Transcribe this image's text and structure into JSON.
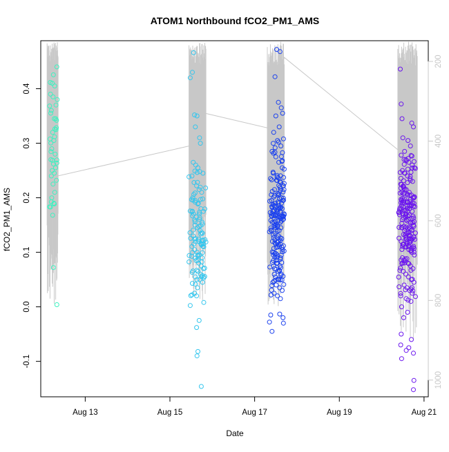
{
  "chart_data": {
    "type": "scatter",
    "title": "ATOM1 Northbound fCO2_PM1_AMS",
    "xlabel": "Date",
    "ylabel": "fCO2_PM1_AMS",
    "x_axis": {
      "range_days": [
        11.95,
        21.1
      ],
      "ticks": [
        {
          "value": 13,
          "label": "Aug 13"
        },
        {
          "value": 15,
          "label": "Aug 15"
        },
        {
          "value": 17,
          "label": "Aug 17"
        },
        {
          "value": 19,
          "label": "Aug 19"
        },
        {
          "value": 21,
          "label": "Aug 21"
        }
      ]
    },
    "y_axis": {
      "range": [
        -0.165,
        0.488
      ],
      "ticks": [
        -0.1,
        0.0,
        0.1,
        0.2,
        0.3,
        0.4
      ],
      "tick_labels": [
        "-0.1",
        "0.0",
        "0.1",
        "0.2",
        "0.3",
        "0.4"
      ]
    },
    "y2_axis": {
      "label": "",
      "reversed": true,
      "range": [
        1042,
        148
      ],
      "ticks": [
        200,
        400,
        600,
        800,
        1000
      ],
      "tick_labels": [
        "200",
        "400",
        "600",
        "800",
        "1000"
      ],
      "color": "#c8c8c8"
    },
    "colors": {
      "series": [
        "#3cf2c0",
        "#33c6ee",
        "#1a40ee",
        "#6a14ee"
      ],
      "altitude_line": "#c8c8c8",
      "axis": "#000000"
    },
    "grid": false,
    "legend": "none",
    "series": [
      {
        "day_range": [
          12.15,
          12.35
        ],
        "y_min": 0.004,
        "y_max": 0.44,
        "points": [
          [
            12.33,
            0.44
          ],
          [
            12.22,
            0.41
          ],
          [
            12.28,
            0.405
          ],
          [
            12.18,
            0.39
          ],
          [
            12.24,
            0.385
          ],
          [
            12.31,
            0.37
          ],
          [
            12.2,
            0.36
          ],
          [
            12.27,
            0.345
          ],
          [
            12.23,
            0.32
          ],
          [
            12.26,
            0.305
          ],
          [
            12.21,
            0.29
          ],
          [
            12.29,
            0.28
          ],
          [
            12.19,
            0.27
          ],
          [
            12.25,
            0.262
          ],
          [
            12.3,
            0.255
          ],
          [
            12.22,
            0.25
          ],
          [
            12.27,
            0.245
          ],
          [
            12.2,
            0.24
          ],
          [
            12.32,
            0.232
          ],
          [
            12.24,
            0.225
          ],
          [
            12.28,
            0.21
          ],
          [
            12.21,
            0.2
          ],
          [
            12.26,
            0.19
          ],
          [
            12.18,
            0.183
          ],
          [
            12.23,
            0.168
          ],
          [
            12.25,
            0.072
          ],
          [
            12.33,
            0.004
          ]
        ]
      },
      {
        "day_range": [
          15.45,
          15.85
        ],
        "y_min": -0.146,
        "y_max": 0.466,
        "points": [
          [
            15.56,
            0.466
          ],
          [
            15.53,
            0.43
          ],
          [
            15.48,
            0.42
          ],
          [
            15.58,
            0.352
          ],
          [
            15.64,
            0.35
          ],
          [
            15.6,
            0.33
          ],
          [
            15.7,
            0.31
          ],
          [
            15.72,
            0.3
          ],
          [
            15.55,
            0.265
          ],
          [
            15.61,
            0.26
          ],
          [
            15.66,
            0.255
          ],
          [
            15.78,
            0.245
          ],
          [
            15.52,
            0.24
          ],
          [
            15.57,
            0.228
          ],
          [
            15.63,
            0.222
          ],
          [
            15.69,
            0.215
          ],
          [
            15.75,
            0.21
          ],
          [
            15.54,
            0.2
          ],
          [
            15.6,
            0.195
          ],
          [
            15.67,
            0.19
          ],
          [
            15.73,
            0.18
          ],
          [
            15.79,
            0.175
          ],
          [
            15.56,
            0.17
          ],
          [
            15.62,
            0.165
          ],
          [
            15.7,
            0.16
          ],
          [
            15.76,
            0.155
          ],
          [
            15.59,
            0.15
          ],
          [
            15.65,
            0.145
          ],
          [
            15.71,
            0.14
          ],
          [
            15.77,
            0.135
          ],
          [
            15.55,
            0.13
          ],
          [
            15.61,
            0.125
          ],
          [
            15.68,
            0.12
          ],
          [
            15.74,
            0.115
          ],
          [
            15.8,
            0.11
          ],
          [
            15.58,
            0.105
          ],
          [
            15.64,
            0.1
          ],
          [
            15.7,
            0.095
          ],
          [
            15.76,
            0.09
          ],
          [
            15.62,
            0.085
          ],
          [
            15.68,
            0.08
          ],
          [
            15.74,
            0.075
          ],
          [
            15.79,
            0.07
          ],
          [
            15.66,
            0.065
          ],
          [
            15.72,
            0.06
          ],
          [
            15.6,
            0.055
          ],
          [
            15.7,
            0.05
          ],
          [
            15.77,
            0.045
          ],
          [
            15.53,
            0.043
          ],
          [
            15.65,
            0.035
          ],
          [
            15.58,
            0.025
          ],
          [
            15.52,
            0.022
          ],
          [
            15.63,
            0.02
          ],
          [
            15.8,
            0.008
          ],
          [
            15.69,
            -0.025
          ],
          [
            15.63,
            -0.038
          ],
          [
            15.66,
            -0.082
          ],
          [
            15.64,
            -0.09
          ],
          [
            15.74,
            -0.146
          ]
        ]
      },
      {
        "day_range": [
          17.35,
          17.7
        ],
        "y_min": -0.045,
        "y_max": 0.472,
        "points": [
          [
            17.52,
            0.472
          ],
          [
            17.6,
            0.468
          ],
          [
            17.48,
            0.422
          ],
          [
            17.56,
            0.375
          ],
          [
            17.63,
            0.365
          ],
          [
            17.66,
            0.355
          ],
          [
            17.5,
            0.35
          ],
          [
            17.58,
            0.33
          ],
          [
            17.45,
            0.32
          ],
          [
            17.54,
            0.305
          ],
          [
            17.62,
            0.295
          ],
          [
            17.41,
            0.285
          ],
          [
            17.5,
            0.275
          ],
          [
            17.57,
            0.265
          ],
          [
            17.65,
            0.255
          ],
          [
            17.44,
            0.245
          ],
          [
            17.53,
            0.238
          ],
          [
            17.6,
            0.23
          ],
          [
            17.68,
            0.222
          ],
          [
            17.47,
            0.215
          ],
          [
            17.55,
            0.208
          ],
          [
            17.63,
            0.2
          ],
          [
            17.4,
            0.195
          ],
          [
            17.49,
            0.19
          ],
          [
            17.57,
            0.185
          ],
          [
            17.65,
            0.18
          ],
          [
            17.43,
            0.175
          ],
          [
            17.51,
            0.17
          ],
          [
            17.59,
            0.165
          ],
          [
            17.67,
            0.16
          ],
          [
            17.46,
            0.155
          ],
          [
            17.54,
            0.15
          ],
          [
            17.62,
            0.145
          ],
          [
            17.39,
            0.14
          ],
          [
            17.48,
            0.135
          ],
          [
            17.56,
            0.13
          ],
          [
            17.64,
            0.125
          ],
          [
            17.42,
            0.12
          ],
          [
            17.5,
            0.115
          ],
          [
            17.58,
            0.11
          ],
          [
            17.66,
            0.105
          ],
          [
            17.45,
            0.1
          ],
          [
            17.53,
            0.095
          ],
          [
            17.61,
            0.09
          ],
          [
            17.44,
            0.085
          ],
          [
            17.52,
            0.08
          ],
          [
            17.6,
            0.075
          ],
          [
            17.47,
            0.07
          ],
          [
            17.55,
            0.065
          ],
          [
            17.63,
            0.06
          ],
          [
            17.49,
            0.055
          ],
          [
            17.57,
            0.05
          ],
          [
            17.43,
            0.045
          ],
          [
            17.51,
            0.04
          ],
          [
            17.59,
            0.035
          ],
          [
            17.65,
            0.03
          ],
          [
            17.46,
            0.025
          ],
          [
            17.54,
            0.02
          ],
          [
            17.61,
            0.015
          ],
          [
            17.38,
            -0.015
          ],
          [
            17.67,
            -0.02
          ],
          [
            17.35,
            -0.028
          ],
          [
            17.68,
            -0.03
          ],
          [
            17.41,
            -0.045
          ]
        ]
      },
      {
        "day_range": [
          20.4,
          20.8
        ],
        "y_min": -0.152,
        "y_max": 0.436,
        "points": [
          [
            20.44,
            0.436
          ],
          [
            20.46,
            0.372
          ],
          [
            20.48,
            0.345
          ],
          [
            20.71,
            0.337
          ],
          [
            20.75,
            0.33
          ],
          [
            20.5,
            0.31
          ],
          [
            20.62,
            0.305
          ],
          [
            20.68,
            0.295
          ],
          [
            20.54,
            0.285
          ],
          [
            20.46,
            0.278
          ],
          [
            20.57,
            0.27
          ],
          [
            20.64,
            0.265
          ],
          [
            20.72,
            0.26
          ],
          [
            20.77,
            0.255
          ],
          [
            20.49,
            0.25
          ],
          [
            20.55,
            0.245
          ],
          [
            20.61,
            0.24
          ],
          [
            20.67,
            0.235
          ],
          [
            20.73,
            0.23
          ],
          [
            20.45,
            0.225
          ],
          [
            20.52,
            0.22
          ],
          [
            20.58,
            0.215
          ],
          [
            20.65,
            0.21
          ],
          [
            20.7,
            0.205
          ],
          [
            20.76,
            0.2
          ],
          [
            20.47,
            0.195
          ],
          [
            20.53,
            0.19
          ],
          [
            20.6,
            0.185
          ],
          [
            20.66,
            0.18
          ],
          [
            20.72,
            0.175
          ],
          [
            20.5,
            0.17
          ],
          [
            20.56,
            0.165
          ],
          [
            20.63,
            0.16
          ],
          [
            20.69,
            0.155
          ],
          [
            20.75,
            0.15
          ],
          [
            20.48,
            0.145
          ],
          [
            20.54,
            0.14
          ],
          [
            20.6,
            0.135
          ],
          [
            20.67,
            0.13
          ],
          [
            20.73,
            0.125
          ],
          [
            20.46,
            0.12
          ],
          [
            20.52,
            0.115
          ],
          [
            20.58,
            0.11
          ],
          [
            20.64,
            0.105
          ],
          [
            20.71,
            0.1
          ],
          [
            20.77,
            0.095
          ],
          [
            20.49,
            0.09
          ],
          [
            20.55,
            0.085
          ],
          [
            20.62,
            0.08
          ],
          [
            20.68,
            0.075
          ],
          [
            20.74,
            0.07
          ],
          [
            20.51,
            0.065
          ],
          [
            20.57,
            0.06
          ],
          [
            20.63,
            0.055
          ],
          [
            20.7,
            0.05
          ],
          [
            20.76,
            0.045
          ],
          [
            20.53,
            0.04
          ],
          [
            20.6,
            0.035
          ],
          [
            20.66,
            0.03
          ],
          [
            20.72,
            0.025
          ],
          [
            20.45,
            0.02
          ],
          [
            20.58,
            0.015
          ],
          [
            20.69,
            0.01
          ],
          [
            20.47,
            0.0
          ],
          [
            20.61,
            -0.01
          ],
          [
            20.52,
            -0.02
          ],
          [
            20.46,
            -0.05
          ],
          [
            20.7,
            -0.06
          ],
          [
            20.45,
            -0.07
          ],
          [
            20.64,
            -0.075
          ],
          [
            20.58,
            -0.08
          ],
          [
            20.75,
            -0.085
          ],
          [
            20.47,
            -0.095
          ],
          [
            20.76,
            -0.135
          ],
          [
            20.75,
            -0.152
          ]
        ]
      }
    ],
    "altitude_trace": {
      "connecting_path": [
        [
          12.25,
          490
        ],
        [
          15.55,
          410
        ],
        [
          15.82,
          330
        ],
        [
          17.35,
          368
        ],
        [
          17.7,
          190
        ],
        [
          20.42,
          425
        ]
      ],
      "flights": [
        {
          "day_range": [
            12.1,
            12.36
          ],
          "alt_min": 160,
          "alt_max": 810
        },
        {
          "day_range": [
            15.45,
            15.85
          ],
          "alt_min": 160,
          "alt_max": 800
        },
        {
          "day_range": [
            17.3,
            17.7
          ],
          "alt_min": 160,
          "alt_max": 820
        },
        {
          "day_range": [
            20.38,
            20.84
          ],
          "alt_min": 160,
          "alt_max": 900
        }
      ]
    }
  }
}
